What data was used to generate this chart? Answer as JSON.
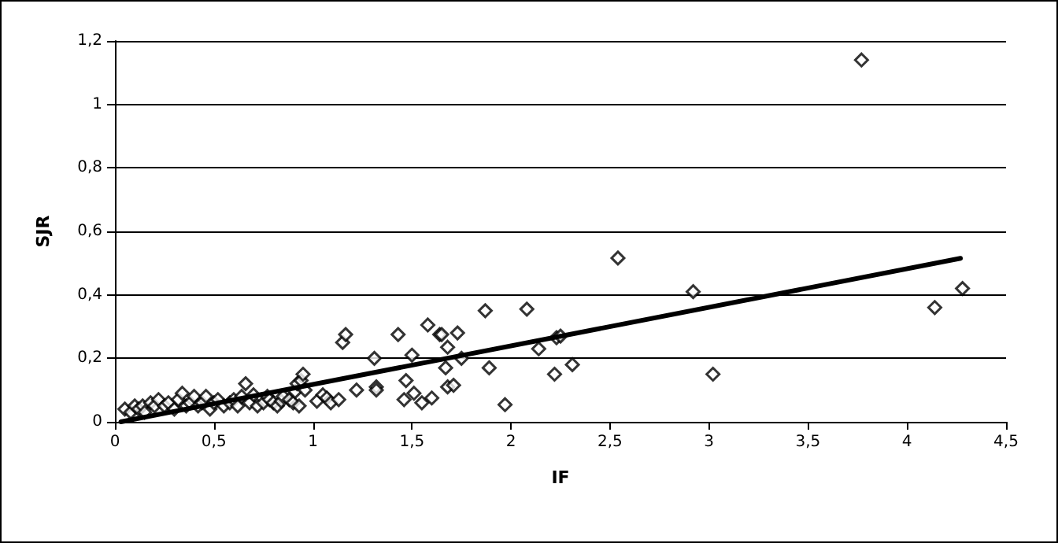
{
  "chart_data": {
    "type": "scatter",
    "xlabel": "IF",
    "ylabel": "SJR",
    "marker": "diamond",
    "grid": "y",
    "xlim": [
      0,
      4.5
    ],
    "ylim": [
      0,
      1.2
    ],
    "xticks": [
      0,
      {
        "value": 0.5,
        "label": "0,5"
      },
      1,
      {
        "value": 1.5,
        "label": "1,5"
      },
      2,
      {
        "value": 2.5,
        "label": "2,5"
      },
      3,
      {
        "value": 3.5,
        "label": "3,5"
      },
      4,
      {
        "value": 4.5,
        "label": "4,5"
      }
    ],
    "yticks": [
      0,
      {
        "value": 0.2,
        "label": "0,2"
      },
      {
        "value": 0.4,
        "label": "0,4"
      },
      {
        "value": 0.6,
        "label": "0,6"
      },
      {
        "value": 0.8,
        "label": "0,8"
      },
      1,
      {
        "value": 1.2,
        "label": "1,2"
      }
    ],
    "series": [
      {
        "color": "#000000",
        "x": [
          0.05,
          0.08,
          0.1,
          0.12,
          0.14,
          0.15,
          0.18,
          0.2,
          0.22,
          0.25,
          0.27,
          0.3,
          0.32,
          0.34,
          0.36,
          0.38,
          0.4,
          0.42,
          0.44,
          0.46,
          0.48,
          0.5,
          0.52,
          0.55,
          0.58,
          0.6,
          0.62,
          0.64,
          0.66,
          0.68,
          0.7,
          0.72,
          0.75,
          0.77,
          0.78,
          0.8,
          0.82,
          0.84,
          0.85,
          0.88,
          0.9,
          0.91,
          0.92,
          0.93,
          0.94,
          0.95,
          0.96,
          1.02,
          1.05,
          1.07,
          1.09,
          1.13,
          1.15,
          1.165,
          1.22,
          1.31,
          1.32,
          1.32,
          1.43,
          1.46,
          1.47,
          1.5,
          1.51,
          1.55,
          1.58,
          1.6,
          1.64,
          1.65,
          1.67,
          1.68,
          1.68,
          1.71,
          1.73,
          1.75,
          1.87,
          1.89,
          1.97,
          2.08,
          2.14,
          2.22,
          2.23,
          2.25,
          2.31,
          2.54,
          2.92,
          3.02,
          3.77,
          4.14,
          4.28
        ],
        "values": [
          0.04,
          0.03,
          0.05,
          0.04,
          0.05,
          0.03,
          0.06,
          0.05,
          0.07,
          0.05,
          0.06,
          0.04,
          0.07,
          0.09,
          0.05,
          0.06,
          0.08,
          0.05,
          0.06,
          0.08,
          0.04,
          0.06,
          0.07,
          0.05,
          0.06,
          0.07,
          0.05,
          0.08,
          0.12,
          0.06,
          0.085,
          0.05,
          0.06,
          0.08,
          0.07,
          0.06,
          0.05,
          0.065,
          0.08,
          0.07,
          0.06,
          0.095,
          0.12,
          0.05,
          0.13,
          0.15,
          0.1,
          0.065,
          0.085,
          0.075,
          0.06,
          0.07,
          0.25,
          0.275,
          0.1,
          0.2,
          0.11,
          0.1,
          0.275,
          0.07,
          0.13,
          0.21,
          0.09,
          0.06,
          0.305,
          0.075,
          0.275,
          0.275,
          0.17,
          0.235,
          0.11,
          0.115,
          0.28,
          0.2,
          0.35,
          0.17,
          0.054,
          0.355,
          0.23,
          0.15,
          0.265,
          0.27,
          0.18,
          0.516,
          0.41,
          0.15,
          1.14,
          0.36,
          0.42
        ]
      },
      {
        "type": "line",
        "marker": "none",
        "color": "#000000",
        "x": [
          0.03,
          4.27
        ],
        "values": [
          0.0,
          0.515
        ]
      }
    ]
  }
}
